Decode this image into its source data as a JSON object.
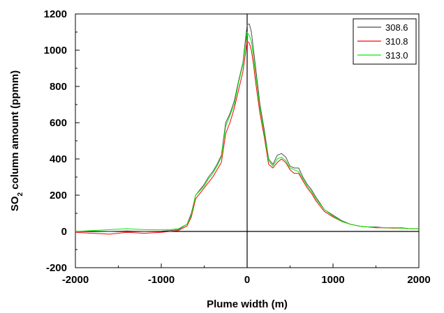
{
  "chart_data": {
    "type": "line",
    "xlabel": "Plume width (m)",
    "ylabel_main": "SO",
    "ylabel_sub": "2",
    "ylabel_rest": " column amount (ppmm)",
    "xlim": [
      -2000,
      2000
    ],
    "ylim": [
      -200,
      1200
    ],
    "xticks": [
      -2000,
      -1000,
      0,
      1000,
      2000
    ],
    "yticks": [
      -200,
      0,
      200,
      400,
      600,
      800,
      1000,
      1200
    ],
    "grid": false,
    "legend_position": "top-right",
    "reference_lines": {
      "x": 0,
      "y": 0
    },
    "series": [
      {
        "name": "308.6",
        "color": "#4d4d4d",
        "x": [
          -2000,
          -1800,
          -1600,
          -1400,
          -1200,
          -1000,
          -900,
          -800,
          -700,
          -650,
          -600,
          -550,
          -500,
          -450,
          -400,
          -350,
          -300,
          -250,
          -200,
          -150,
          -100,
          -50,
          0,
          25,
          50,
          75,
          100,
          150,
          200,
          250,
          300,
          350,
          400,
          450,
          500,
          550,
          600,
          650,
          700,
          750,
          800,
          900,
          1000,
          1100,
          1200,
          1300,
          1400,
          1500,
          1600,
          1700,
          1800,
          1900,
          2000
        ],
        "y": [
          0,
          -2,
          0,
          3,
          0,
          2,
          5,
          10,
          40,
          100,
          200,
          230,
          260,
          300,
          330,
          370,
          420,
          600,
          650,
          720,
          830,
          930,
          1140,
          1145,
          1100,
          1000,
          900,
          700,
          560,
          400,
          370,
          420,
          430,
          410,
          360,
          350,
          350,
          300,
          260,
          230,
          190,
          120,
          90,
          60,
          40,
          30,
          25,
          25,
          20,
          20,
          20,
          15,
          15
        ]
      },
      {
        "name": "310.8",
        "color": "#ff0000",
        "x": [
          -2000,
          -1800,
          -1600,
          -1400,
          -1200,
          -1000,
          -900,
          -800,
          -700,
          -650,
          -600,
          -550,
          -500,
          -450,
          -400,
          -350,
          -300,
          -250,
          -200,
          -150,
          -100,
          -50,
          0,
          25,
          50,
          75,
          100,
          150,
          200,
          250,
          300,
          350,
          400,
          450,
          500,
          550,
          600,
          650,
          700,
          750,
          800,
          900,
          1000,
          1100,
          1200,
          1300,
          1400,
          1500,
          1600,
          1700,
          1800,
          1900,
          2000
        ],
        "y": [
          -5,
          -10,
          -15,
          -5,
          -10,
          -5,
          0,
          5,
          30,
          80,
          180,
          210,
          240,
          270,
          300,
          340,
          380,
          540,
          600,
          680,
          780,
          880,
          1050,
          1040,
          1000,
          920,
          820,
          650,
          520,
          370,
          350,
          380,
          400,
          380,
          340,
          320,
          320,
          280,
          240,
          210,
          170,
          110,
          80,
          55,
          40,
          30,
          25,
          20,
          20,
          18,
          18,
          15,
          15
        ]
      },
      {
        "name": "313.0",
        "color": "#00ee00",
        "x": [
          -2000,
          -1800,
          -1600,
          -1400,
          -1200,
          -1000,
          -900,
          -800,
          -700,
          -650,
          -600,
          -550,
          -500,
          -450,
          -400,
          -350,
          -300,
          -250,
          -200,
          -150,
          -100,
          -50,
          0,
          25,
          50,
          75,
          100,
          150,
          200,
          250,
          300,
          350,
          400,
          450,
          500,
          550,
          600,
          650,
          700,
          750,
          800,
          900,
          1000,
          1100,
          1200,
          1300,
          1400,
          1500,
          1600,
          1700,
          1800,
          1900,
          2000
        ],
        "y": [
          0,
          5,
          10,
          15,
          10,
          10,
          10,
          15,
          40,
          90,
          200,
          225,
          250,
          290,
          320,
          360,
          410,
          580,
          640,
          700,
          820,
          920,
          1100,
          1080,
          1050,
          960,
          860,
          680,
          540,
          390,
          360,
          400,
          410,
          390,
          350,
          340,
          330,
          290,
          250,
          220,
          180,
          120,
          85,
          55,
          40,
          30,
          25,
          22,
          20,
          20,
          18,
          15,
          15
        ]
      }
    ]
  }
}
